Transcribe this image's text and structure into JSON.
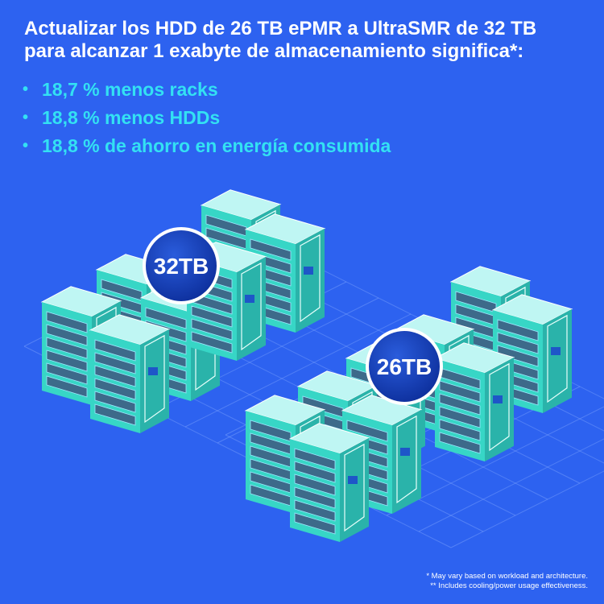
{
  "headline": {
    "line1": "Actualizar los HDD de 26 TB ePMR a UltraSMR de 32 TB",
    "line2": "para alcanzar 1 exabyte de almacenamiento significa*:"
  },
  "benefits": [
    "18,7 % menos racks",
    "18,8 % menos HDDs",
    "18,8 % de ahorro en energía consumida"
  ],
  "bullet_glyph": "•",
  "badges": {
    "left": "32TB",
    "right": "26TB"
  },
  "footnotes": {
    "line1": "* May vary based on workload and architecture.",
    "line2": "** Includes cooling/power usage effectiveness."
  },
  "colors": {
    "background": "#2d62f0",
    "accent_text": "#33e1f3",
    "rack_front": "#37d6c6",
    "rack_side": "#2ab3aa",
    "rack_top": "#bff6f3",
    "badge": "#0f3db8"
  }
}
